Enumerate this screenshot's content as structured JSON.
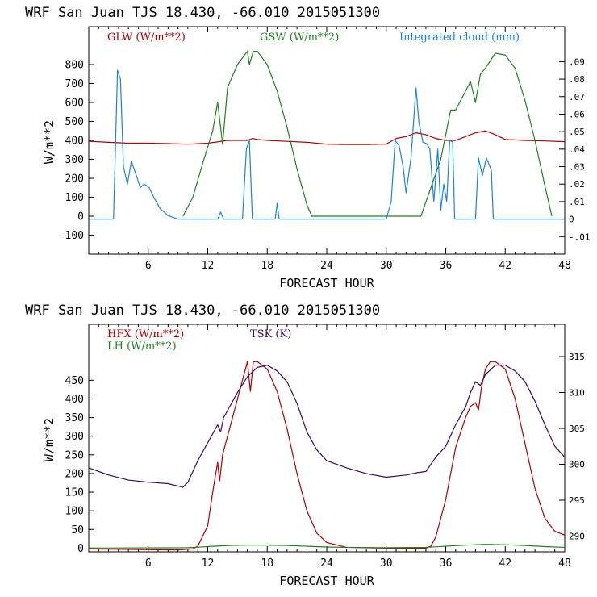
{
  "colors": {
    "red": "#b00000",
    "green": "#208020",
    "blue": "#1a82e0",
    "purple": "#3a0a5a",
    "axis": "#000000"
  },
  "chart_data": [
    {
      "type": "line",
      "title": "WRF  San Juan TJS  18.430, -66.010  2015051300",
      "xlabel": "FORECAST HOUR",
      "ylabel": "W/m**2",
      "xlim": [
        0,
        48
      ],
      "ylim": [
        -200,
        1000
      ],
      "xticks": [
        "6",
        "12",
        "18",
        "24",
        "30",
        "36",
        "42",
        "48"
      ],
      "yticks": [
        "-100",
        "0",
        "100",
        "200",
        "300",
        "400",
        "500",
        "600",
        "700",
        "800"
      ],
      "y2lim": [
        -0.02,
        0.11
      ],
      "y2ticks": [
        "-.01",
        "0",
        ".01",
        ".02",
        ".03",
        ".04",
        ".05",
        ".06",
        ".07",
        ".08",
        ".09"
      ],
      "series": [
        {
          "name": "GLW (W/m**2)",
          "axis": "left",
          "color": "red",
          "x": [
            0,
            2,
            4,
            6,
            8,
            10,
            12,
            13,
            14,
            15,
            16,
            16.5,
            17,
            18,
            20,
            22,
            24,
            26,
            28,
            30,
            31,
            32,
            33,
            34,
            35,
            36,
            37,
            38,
            39,
            40,
            41,
            42,
            44,
            46,
            48
          ],
          "y": [
            395,
            390,
            385,
            385,
            383,
            380,
            385,
            392,
            400,
            400,
            400,
            410,
            405,
            400,
            395,
            390,
            380,
            378,
            378,
            380,
            410,
            420,
            440,
            430,
            410,
            400,
            400,
            420,
            440,
            450,
            430,
            405,
            400,
            397,
            393
          ]
        },
        {
          "name": "GSW (W/m**2)",
          "axis": "left",
          "color": "green",
          "x": [
            9.5,
            10.5,
            11.5,
            12.5,
            13,
            13.5,
            14,
            15,
            16,
            16.2,
            16.6,
            17,
            18,
            19,
            20,
            21,
            22,
            22.5,
            33.5,
            34.5,
            35.5,
            36.5,
            37,
            38,
            38.5,
            39,
            39.5,
            40,
            41,
            42,
            43,
            44,
            45,
            46,
            46.7
          ],
          "y": [
            0,
            100,
            280,
            450,
            600,
            380,
            680,
            800,
            870,
            800,
            870,
            870,
            800,
            660,
            470,
            250,
            60,
            0,
            0,
            150,
            300,
            560,
            560,
            660,
            710,
            600,
            750,
            780,
            860,
            850,
            780,
            610,
            400,
            160,
            0
          ]
        },
        {
          "name": "Integrated cloud (mm)",
          "axis": "right",
          "color": "blue",
          "x": [
            0,
            2.5,
            2.9,
            3.2,
            3.5,
            3.9,
            4.3,
            4.8,
            5.2,
            5.6,
            6.1,
            6.6,
            7.2,
            8,
            9,
            13,
            13.3,
            13.6,
            15.5,
            15.9,
            16.2,
            16.5,
            18.8,
            19,
            19.2,
            30,
            30.5,
            30.9,
            31.3,
            31.7,
            32,
            32.5,
            33,
            33.3,
            33.7,
            34.1,
            34.4,
            34.8,
            35.2,
            35.5,
            35.8,
            36.1,
            36.4,
            36.7,
            36.9,
            39,
            39.3,
            39.5,
            39.7,
            40.1,
            40.6,
            40.8,
            48
          ],
          "y": [
            0,
            0,
            0.085,
            0.08,
            0.03,
            0.02,
            0.033,
            0.025,
            0.018,
            0.02,
            0.018,
            0.012,
            0.006,
            0.002,
            0,
            0,
            0.004,
            0,
            0,
            0.04,
            0.045,
            0,
            0,
            0.009,
            0,
            0,
            0.01,
            0.045,
            0.042,
            0.03,
            0.015,
            0.035,
            0.075,
            0.055,
            0.044,
            0.043,
            0.04,
            0.01,
            0.04,
            0.005,
            0.02,
            0.01,
            0.045,
            0.044,
            0,
            0,
            0.035,
            0.03,
            0.025,
            0.035,
            0.028,
            0,
            0
          ]
        }
      ]
    },
    {
      "type": "line",
      "title": "WRF  San Juan TJS  18.430, -66.010  2015051300",
      "xlabel": "FORECAST HOUR",
      "ylabel": "W/m**2",
      "xlim": [
        0,
        48
      ],
      "ylim": [
        -10,
        600
      ],
      "xticks": [
        "6",
        "12",
        "18",
        "24",
        "30",
        "36",
        "42",
        "48"
      ],
      "yticks": [
        "0",
        "50",
        "100",
        "150",
        "200",
        "250",
        "300",
        "350",
        "400",
        "450"
      ],
      "y2lim": [
        287.8,
        319.5
      ],
      "y2ticks": [
        "290",
        "295",
        "300",
        "305",
        "310",
        "315"
      ],
      "series": [
        {
          "name": "HFX (W/m**2)",
          "axis": "left",
          "color": "red",
          "x": [
            0,
            6,
            9,
            10.5,
            11,
            12,
            12.5,
            13,
            13.2,
            13.5,
            14,
            14.5,
            15,
            16,
            16.3,
            16.6,
            17,
            18,
            19,
            20,
            21,
            22,
            23,
            24,
            26,
            30,
            34,
            34.5,
            35,
            36,
            37,
            38,
            38.5,
            39,
            39.3,
            39.6,
            40,
            40.5,
            41,
            42,
            43,
            44,
            45,
            46,
            47,
            48
          ],
          "y": [
            -2,
            -4,
            -5,
            -2,
            5,
            60,
            150,
            230,
            180,
            250,
            300,
            350,
            400,
            500,
            420,
            500,
            500,
            480,
            420,
            320,
            200,
            100,
            40,
            15,
            2,
            0,
            0,
            5,
            30,
            130,
            270,
            350,
            380,
            390,
            370,
            430,
            480,
            500,
            500,
            480,
            400,
            280,
            160,
            80,
            45,
            35
          ]
        },
        {
          "name": "LH (W/m**2)",
          "axis": "left",
          "color": "green",
          "x": [
            0,
            10,
            12,
            14,
            16,
            18,
            20,
            22,
            24,
            26,
            30,
            34,
            36,
            38,
            40,
            42,
            44,
            46,
            48
          ],
          "y": [
            0,
            1,
            4,
            7,
            8,
            8,
            7,
            5,
            3,
            2,
            1,
            2,
            5,
            8,
            10,
            9,
            7,
            4,
            2
          ]
        },
        {
          "name": "TSK (K)",
          "axis": "right",
          "color": "purple",
          "x": [
            0,
            2,
            4,
            6,
            8,
            9.5,
            10,
            11,
            12,
            13,
            13.3,
            13.6,
            14,
            15,
            16,
            17,
            18,
            19,
            20,
            21,
            22,
            23,
            24,
            26,
            28,
            30,
            32,
            33,
            34,
            35,
            36,
            37,
            38,
            38.5,
            39,
            39.5,
            40,
            41,
            42,
            43,
            44,
            45,
            46,
            47,
            48
          ],
          "y": [
            299.5,
            298.5,
            297.8,
            297.5,
            297.3,
            296.8,
            297.5,
            300.5,
            303,
            305.5,
            304.5,
            306.5,
            307.5,
            310,
            312.2,
            313.5,
            313.8,
            313,
            311.5,
            308.5,
            304.5,
            302,
            300.5,
            299.5,
            298.7,
            298.2,
            298.5,
            298.8,
            299,
            301,
            302.5,
            305.5,
            308,
            310,
            311.5,
            311,
            312.5,
            313.8,
            313.8,
            313,
            311.5,
            308.8,
            305.5,
            302.5,
            301
          ]
        }
      ]
    }
  ]
}
